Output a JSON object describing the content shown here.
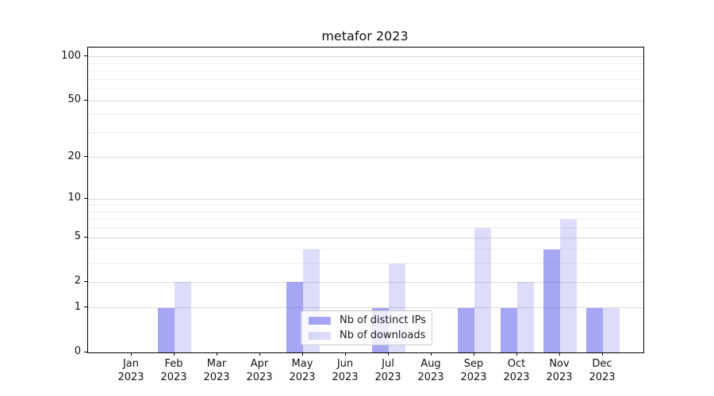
{
  "chart_data": {
    "type": "bar",
    "title": "metafor 2023",
    "xlabel": "",
    "ylabel": "",
    "categories": [
      "Jan",
      "Feb",
      "Mar",
      "Apr",
      "May",
      "Jun",
      "Jul",
      "Aug",
      "Sep",
      "Oct",
      "Nov",
      "Dec"
    ],
    "year": "2023",
    "series": [
      {
        "name": "Nb of distinct IPs",
        "values": [
          0,
          1,
          0,
          0,
          2,
          0,
          1,
          0,
          1,
          1,
          4,
          1
        ],
        "color": "rgba(102,102,238,0.58)"
      },
      {
        "name": "Nb of downloads",
        "values": [
          0,
          2,
          0,
          0,
          4,
          0,
          3,
          0,
          6,
          2,
          7,
          1
        ],
        "color": "rgba(102,102,238,0.22)"
      }
    ],
    "y_scale": "log1p",
    "y_ticks": [
      0,
      1,
      2,
      5,
      10,
      20,
      50,
      100
    ],
    "y_minor_gridlines": [
      3,
      4,
      6,
      7,
      8,
      9,
      30,
      40,
      60,
      70,
      80,
      90
    ],
    "ylim": [
      0,
      116
    ],
    "grid": true,
    "legend_position": "lower center"
  },
  "colors": {
    "background": "#ffffff",
    "axis_frame": "#000000",
    "grid_major": "#d9d9d9",
    "grid_minor": "#ededed",
    "text": "#1a1a1a",
    "legend_border": "#cccccc",
    "legend_background": "rgba(255,255,255,0.8)"
  }
}
